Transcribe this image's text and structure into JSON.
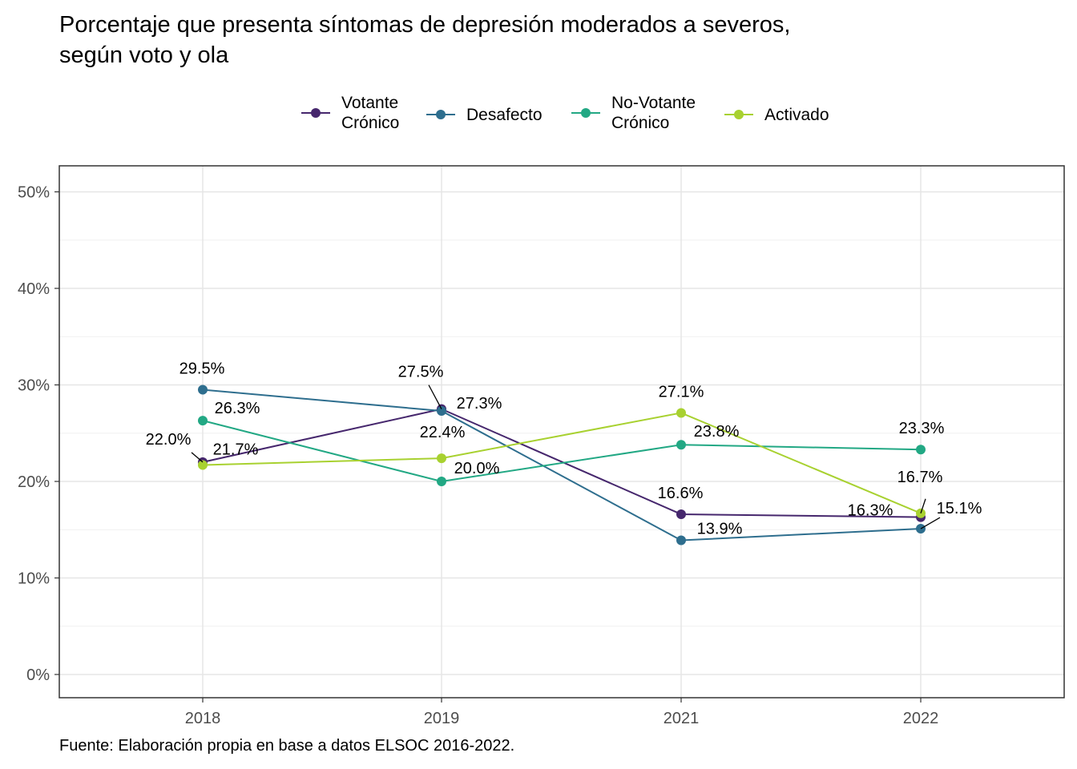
{
  "title_lines": [
    "Porcentaje que presenta síntomas de depresión moderados a severos,",
    "según voto y ola"
  ],
  "caption": "Fuente: Elaboración propia en base a datos ELSOC 2016-2022.",
  "chart_data": {
    "type": "line",
    "x": [
      "2018",
      "2019",
      "2021",
      "2022"
    ],
    "ylim": [
      0,
      0.5
    ],
    "yticks": [
      0,
      0.1,
      0.2,
      0.3,
      0.4,
      0.5
    ],
    "ytick_labels": [
      "0%",
      "10%",
      "20%",
      "30%",
      "40%",
      "50%"
    ],
    "grid": true,
    "legend_position": "top",
    "series": [
      {
        "name": "Votante\nCrónico",
        "color": "#46276d",
        "values": [
          0.22,
          0.275,
          0.166,
          0.163
        ],
        "labels": [
          "22.0%",
          "27.5%",
          "16.6%",
          "16.3%"
        ]
      },
      {
        "name": "Desafecto",
        "color": "#2e6e8e",
        "values": [
          0.295,
          0.273,
          0.139,
          0.151
        ],
        "labels": [
          "29.5%",
          "27.3%",
          "13.9%",
          "15.1%"
        ]
      },
      {
        "name": "No-Votante\nCrónico",
        "color": "#22a884",
        "values": [
          0.263,
          0.2,
          0.238,
          0.233
        ],
        "labels": [
          "26.3%",
          "20.0%",
          "23.8%",
          "23.3%"
        ]
      },
      {
        "name": "Activado",
        "color": "#a8d130",
        "values": [
          0.217,
          0.224,
          0.271,
          0.167
        ],
        "labels": [
          "21.7%",
          "22.4%",
          "27.1%",
          "16.7%"
        ]
      }
    ]
  }
}
